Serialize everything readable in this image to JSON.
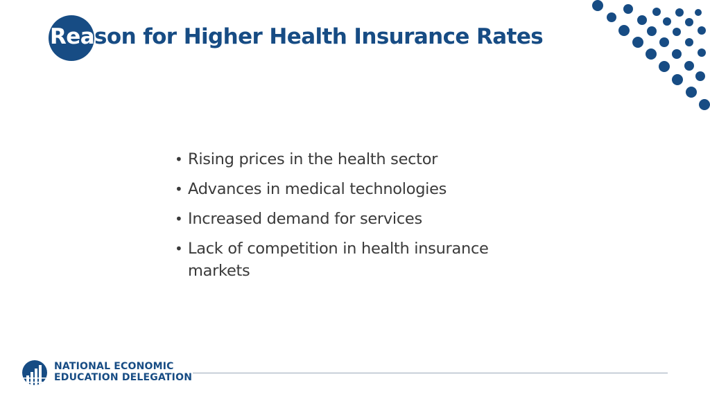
{
  "slide": {
    "title_highlight": "Rea",
    "title_rest": "son for Higher Health Insurance Rates",
    "bullets": [
      "Rising prices in the health sector",
      "Advances in medical technologies",
      "Increased demand for services",
      "Lack of competition in health insurance markets"
    ]
  },
  "footer": {
    "org_line1": "NATIONAL ECONOMIC",
    "org_line2": "EDUCATION DELEGATION"
  },
  "colors": {
    "brand_blue": "#174c84",
    "text_gray": "#3a3a3a"
  },
  "icons": {
    "logo": "globe-with-bar-chart-icon",
    "bullet": "bullet-dot"
  }
}
